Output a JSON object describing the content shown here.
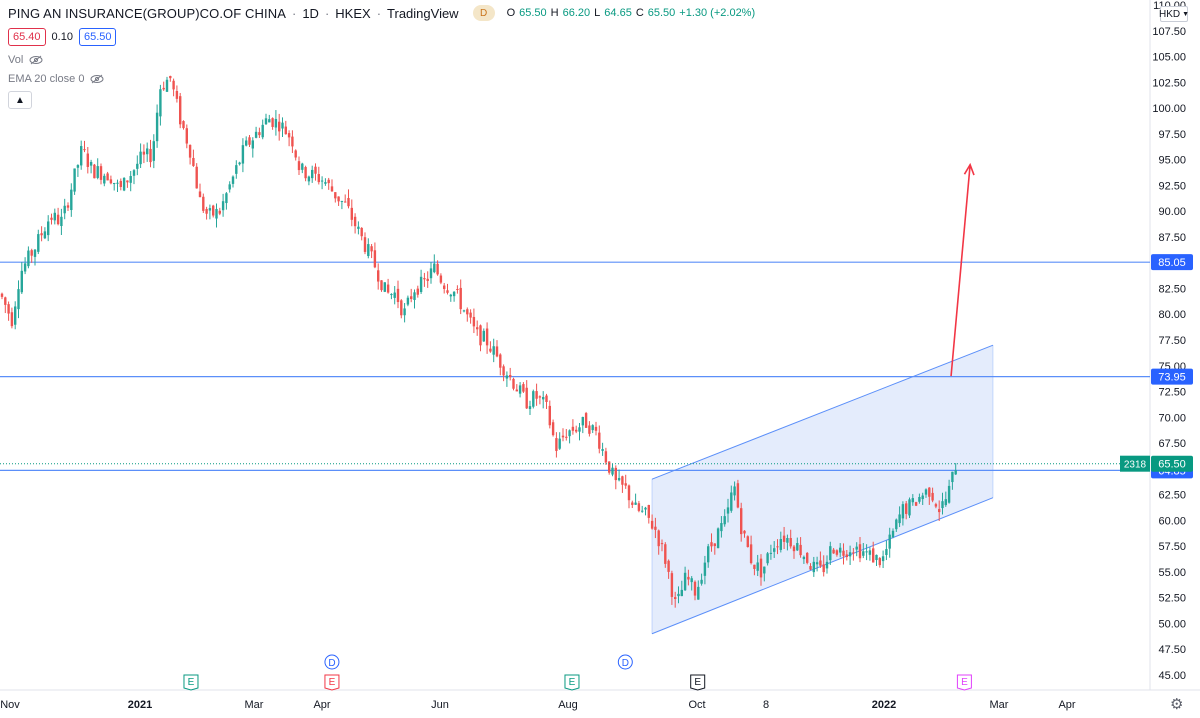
{
  "header": {
    "symbol": "PING AN INSURANCE(GROUP)CO.OF CHINA",
    "interval": "1D",
    "exchange": "HKEX",
    "source": "TradingView",
    "badge": "D",
    "open_label": "O",
    "open": "65.50",
    "high_label": "H",
    "high": "66.20",
    "low_label": "L",
    "low": "64.65",
    "close_label": "C",
    "close": "65.50",
    "change": "+1.30 (+2.02%)",
    "bid": "65.40",
    "spread": "0.10",
    "ask": "65.50"
  },
  "indicators": {
    "vol_label": "Vol",
    "ema_label": "EMA 20 close 0"
  },
  "currency": "HKD",
  "colors": {
    "up": "#26a69a",
    "down": "#ef5350",
    "hline": "#5b8ff9",
    "channel_fill": "#dbe5fb",
    "arrow": "#f23645",
    "last_price": "#089981",
    "axis_label_bg": "#2962ff"
  },
  "chart_data": {
    "type": "candlestick",
    "y_axis": {
      "min": 45,
      "max": 110,
      "step": 2.5,
      "tick_labels": [
        "110.00",
        "107.50",
        "105.00",
        "102.50",
        "100.00",
        "97.50",
        "95.00",
        "92.50",
        "90.00",
        "87.50",
        "85.00",
        "82.50",
        "80.00",
        "77.50",
        "75.00",
        "72.50",
        "70.00",
        "67.50",
        "65.00",
        "62.50",
        "60.00",
        "57.50",
        "55.00",
        "52.50",
        "50.00",
        "47.50",
        "45.00"
      ]
    },
    "x_axis_labels": [
      "Nov",
      "2021",
      "Mar",
      "Apr",
      "Jun",
      "Aug",
      "Oct",
      "8",
      "2022",
      "Mar",
      "Apr"
    ],
    "horizontal_levels": [
      {
        "price": 85.05,
        "label": "85.05"
      },
      {
        "price": 73.95,
        "label": "73.95"
      },
      {
        "price": 64.85,
        "label": "64.85"
      }
    ],
    "last_price": {
      "value": 65.5,
      "label": "65.50",
      "volume_label": "2318"
    },
    "channel": {
      "lower_start": {
        "date": "2021-10-04",
        "price": 49.0
      },
      "lower_end": {
        "date": "2022-04-01",
        "price": 62.2
      },
      "upper_start": {
        "date": "2021-10-04",
        "price": 64.0
      },
      "upper_end": {
        "date": "2022-04-01",
        "price": 77.0
      }
    },
    "arrow": {
      "from": {
        "date": "2022-03-10",
        "price": 74.0
      },
      "to": {
        "date": "2022-03-20",
        "price": 94.5
      }
    },
    "events": [
      {
        "letter": "E",
        "date": "2021-02-04",
        "color": "#089981"
      },
      {
        "letter": "D",
        "date": "2021-04-19",
        "color": "#2962ff"
      },
      {
        "letter": "E",
        "date": "2021-04-19",
        "color": "#f23645"
      },
      {
        "letter": "E",
        "date": "2021-08-23",
        "color": "#089981"
      },
      {
        "letter": "D",
        "date": "2021-09-20",
        "color": "#2962ff"
      },
      {
        "letter": "E",
        "date": "2021-10-28",
        "color": "#131722"
      },
      {
        "letter": "E",
        "date": "2022-03-17",
        "color": "#e040fb"
      }
    ],
    "price_path": [
      [
        0,
        82.0
      ],
      [
        12,
        79.5
      ],
      [
        20,
        84.0
      ],
      [
        35,
        86.5
      ],
      [
        50,
        89.5
      ],
      [
        62,
        89.0
      ],
      [
        72,
        92.5
      ],
      [
        82,
        96.0
      ],
      [
        92,
        94.0
      ],
      [
        110,
        93.5
      ],
      [
        120,
        92.0
      ],
      [
        130,
        93.5
      ],
      [
        140,
        95.0
      ],
      [
        152,
        95.5
      ],
      [
        160,
        102.0
      ],
      [
        170,
        103.0
      ],
      [
        180,
        99.0
      ],
      [
        190,
        96.0
      ],
      [
        200,
        91.0
      ],
      [
        208,
        89.5
      ],
      [
        220,
        90.0
      ],
      [
        232,
        93.0
      ],
      [
        244,
        96.0
      ],
      [
        256,
        97.5
      ],
      [
        268,
        99.0
      ],
      [
        280,
        98.5
      ],
      [
        292,
        97.0
      ],
      [
        300,
        94.0
      ],
      [
        312,
        93.5
      ],
      [
        324,
        93.0
      ],
      [
        336,
        91.5
      ],
      [
        346,
        90.5
      ],
      [
        356,
        88.5
      ],
      [
        366,
        86.5
      ],
      [
        376,
        84.5
      ],
      [
        386,
        82.0
      ],
      [
        396,
        82.0
      ],
      [
        404,
        80.0
      ],
      [
        414,
        82.5
      ],
      [
        424,
        83.0
      ],
      [
        434,
        84.5
      ],
      [
        444,
        83.0
      ],
      [
        456,
        82.0
      ],
      [
        466,
        80.0
      ],
      [
        476,
        78.0
      ],
      [
        486,
        77.5
      ],
      [
        496,
        76.0
      ],
      [
        506,
        74.5
      ],
      [
        516,
        73.0
      ],
      [
        526,
        71.5
      ],
      [
        536,
        72.0
      ],
      [
        546,
        71.0
      ],
      [
        556,
        67.0
      ],
      [
        566,
        68.5
      ],
      [
        576,
        69.0
      ],
      [
        586,
        69.5
      ],
      [
        596,
        68.5
      ],
      [
        606,
        66.0
      ],
      [
        616,
        63.5
      ],
      [
        626,
        63.0
      ],
      [
        636,
        61.0
      ],
      [
        646,
        60.5
      ],
      [
        656,
        59.0
      ],
      [
        666,
        56.0
      ],
      [
        676,
        51.5
      ],
      [
        686,
        54.5
      ],
      [
        696,
        53.0
      ],
      [
        706,
        56.5
      ],
      [
        716,
        58.5
      ],
      [
        726,
        60.0
      ],
      [
        734,
        63.5
      ],
      [
        742,
        59.0
      ],
      [
        752,
        56.0
      ],
      [
        762,
        55.0
      ],
      [
        772,
        57.5
      ],
      [
        782,
        58.5
      ],
      [
        792,
        58.0
      ],
      [
        802,
        57.0
      ],
      [
        812,
        55.5
      ],
      [
        822,
        55.0
      ],
      [
        832,
        57.5
      ],
      [
        842,
        57.0
      ],
      [
        852,
        57.5
      ],
      [
        862,
        57.0
      ],
      [
        872,
        56.5
      ],
      [
        882,
        56.0
      ],
      [
        892,
        58.5
      ],
      [
        902,
        61.0
      ],
      [
        912,
        61.5
      ],
      [
        922,
        62.5
      ],
      [
        930,
        63.0
      ],
      [
        940,
        61.0
      ],
      [
        948,
        62.5
      ],
      [
        956,
        65.5
      ]
    ]
  }
}
